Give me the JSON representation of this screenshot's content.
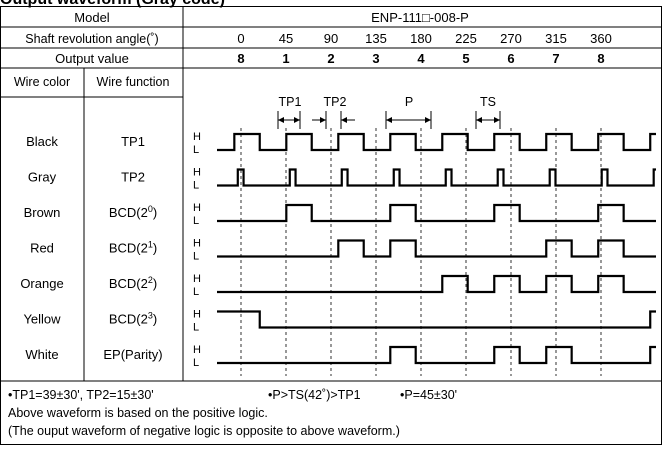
{
  "page_title": "Output waveform (Gray code)",
  "header": {
    "model_label": "Model",
    "model_value": "ENP-111□-008-P",
    "angle_label": "Shaft revolution angle(˚)",
    "output_label": "Output value",
    "wire_color_label": "Wire color",
    "wire_function_label": "Wire function"
  },
  "angles": [
    "0",
    "45",
    "90",
    "135",
    "180",
    "225",
    "270",
    "315",
    "360"
  ],
  "outputs": [
    "8",
    "1",
    "2",
    "3",
    "4",
    "5",
    "6",
    "7",
    "8"
  ],
  "timing_labels": {
    "tp1": "TP1",
    "tp2": "TP2",
    "p": "P",
    "ts": "TS"
  },
  "level_labels": {
    "high": "H",
    "low": "L"
  },
  "rows": [
    {
      "color": "Black",
      "function": "TP1",
      "sup": "",
      "suffix": "",
      "levels": [
        [
          0,
          0
        ],
        [
          15,
          1
        ],
        [
          37,
          0
        ],
        [
          60,
          1
        ],
        [
          82,
          0
        ],
        [
          105,
          1
        ],
        [
          127,
          0
        ],
        [
          150,
          1
        ],
        [
          172,
          0
        ],
        [
          195,
          1
        ],
        [
          217,
          0
        ],
        [
          240,
          1
        ],
        [
          262,
          0
        ],
        [
          285,
          1
        ],
        [
          307,
          0
        ],
        [
          330,
          1
        ],
        [
          352,
          0
        ],
        [
          375,
          1
        ],
        [
          380,
          1
        ]
      ]
    },
    {
      "color": "Gray",
      "function": "TP2",
      "sup": "",
      "suffix": "",
      "levels": [
        [
          0,
          0
        ],
        [
          18,
          1
        ],
        [
          23,
          0
        ],
        [
          63,
          1
        ],
        [
          68,
          0
        ],
        [
          108,
          1
        ],
        [
          113,
          0
        ],
        [
          153,
          1
        ],
        [
          158,
          0
        ],
        [
          198,
          1
        ],
        [
          203,
          0
        ],
        [
          243,
          1
        ],
        [
          248,
          0
        ],
        [
          288,
          1
        ],
        [
          293,
          0
        ],
        [
          333,
          1
        ],
        [
          338,
          0
        ],
        [
          378,
          1
        ],
        [
          380,
          1
        ]
      ]
    },
    {
      "color": "Brown",
      "function": "BCD(2",
      "sup": "0",
      "suffix": ")",
      "levels": [
        [
          0,
          0
        ],
        [
          60,
          1
        ],
        [
          82,
          0
        ],
        [
          150,
          1
        ],
        [
          172,
          0
        ],
        [
          240,
          1
        ],
        [
          262,
          0
        ],
        [
          330,
          1
        ],
        [
          352,
          0
        ],
        [
          380,
          0
        ]
      ]
    },
    {
      "color": "Red",
      "function": "BCD(2",
      "sup": "1",
      "suffix": ")",
      "levels": [
        [
          0,
          0
        ],
        [
          105,
          1
        ],
        [
          127,
          0
        ],
        [
          150,
          1
        ],
        [
          172,
          0
        ],
        [
          285,
          1
        ],
        [
          307,
          0
        ],
        [
          330,
          1
        ],
        [
          352,
          0
        ],
        [
          380,
          0
        ]
      ]
    },
    {
      "color": "Orange",
      "function": "BCD(2",
      "sup": "2",
      "suffix": ")",
      "levels": [
        [
          0,
          0
        ],
        [
          195,
          1
        ],
        [
          217,
          0
        ],
        [
          240,
          1
        ],
        [
          262,
          0
        ],
        [
          285,
          1
        ],
        [
          307,
          0
        ],
        [
          330,
          1
        ],
        [
          352,
          0
        ],
        [
          380,
          0
        ]
      ]
    },
    {
      "color": "Yellow",
      "function": "BCD(2",
      "sup": "3",
      "suffix": ")",
      "levels": [
        [
          0,
          1
        ],
        [
          37,
          0
        ],
        [
          375,
          1
        ],
        [
          380,
          1
        ]
      ]
    },
    {
      "color": "White",
      "function": "EP(Parity)",
      "sup": "",
      "suffix": "",
      "levels": [
        [
          0,
          0
        ],
        [
          150,
          1
        ],
        [
          172,
          0
        ],
        [
          240,
          1
        ],
        [
          262,
          0
        ],
        [
          285,
          1
        ],
        [
          307,
          0
        ],
        [
          375,
          1
        ],
        [
          380,
          1
        ]
      ]
    }
  ],
  "notes": {
    "line1_a": "•TP1=39±30', TP2=15±30'",
    "line1_b": "•P>TS(42˚)>TP1",
    "line1_c": "•P=45±30'",
    "line2": "Above waveform is based on the positive logic.",
    "line3": "(The ouput waveform of negative logic is opposite to above waveform.)"
  }
}
